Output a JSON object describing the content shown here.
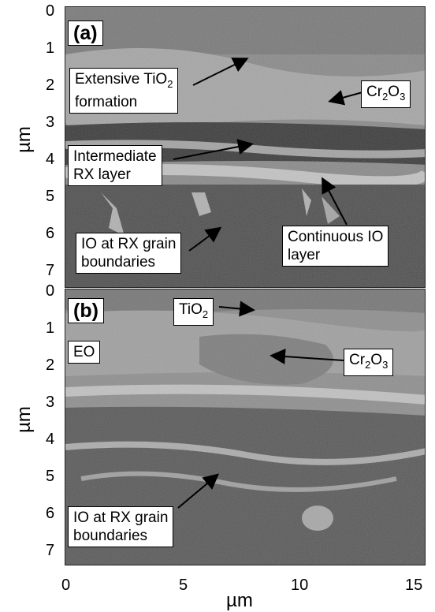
{
  "axes": {
    "ylabel": "µm",
    "xlabel": "µm",
    "yticks_a": [
      "0",
      "1",
      "2",
      "3",
      "4",
      "5",
      "6",
      "7"
    ],
    "yticks_b": [
      "0",
      "1",
      "2",
      "3",
      "4",
      "5",
      "6",
      "7"
    ],
    "xticks": [
      "0",
      "5",
      "10",
      "15"
    ]
  },
  "panel_a": {
    "label": "(a)",
    "callouts": {
      "tio2_line1": "Extensive TiO",
      "tio2_sub": "2",
      "tio2_line2": "formation",
      "cr2o3_a": "Cr",
      "cr2o3_s1": "2",
      "cr2o3_b": "O",
      "cr2o3_s2": "3",
      "rx_line1": "Intermediate",
      "rx_line2": "RX layer",
      "io_line1": "IO at RX grain",
      "io_line2": "boundaries",
      "cio_line1": "Continuous IO",
      "cio_line2": "layer"
    }
  },
  "panel_b": {
    "label": "(b)",
    "callouts": {
      "tio2_a": "TiO",
      "tio2_s": "2",
      "eo": "EO",
      "cr2o3_a": "Cr",
      "cr2o3_s1": "2",
      "cr2o3_b": "O",
      "cr2o3_s2": "3",
      "io_line1": "IO at RX grain",
      "io_line2": "boundaries"
    }
  }
}
